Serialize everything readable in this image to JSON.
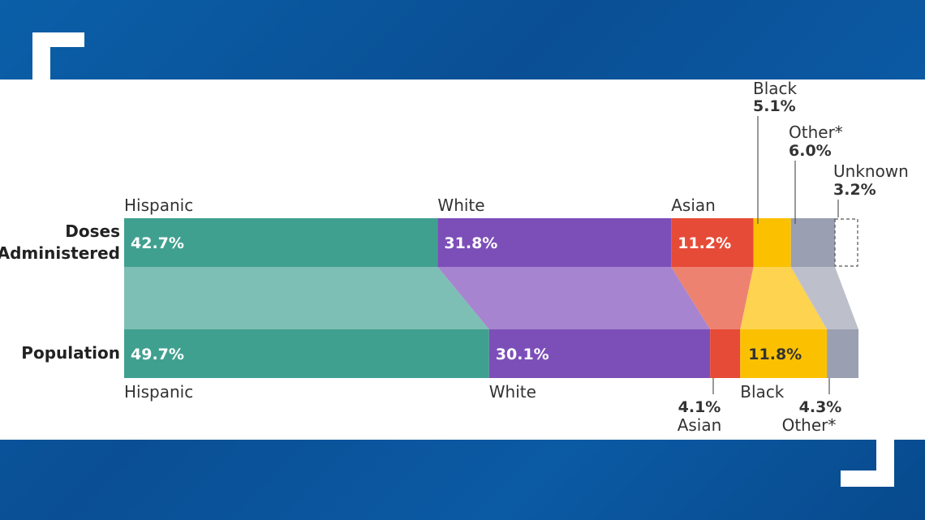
{
  "chart_data": {
    "type": "bar",
    "orientation": "horizontal-stacked-100",
    "rows": [
      "Doses Administered",
      "Population"
    ],
    "series": [
      {
        "name": "Hispanic",
        "values": [
          42.7,
          49.7
        ],
        "color": "#40a090",
        "light": "#7dbfb4"
      },
      {
        "name": "White",
        "values": [
          31.8,
          30.1
        ],
        "color": "#7c4fb8",
        "light": "#a784cf"
      },
      {
        "name": "Asian",
        "values": [
          11.2,
          4.1
        ],
        "color": "#e64b37",
        "light": "#ee8270"
      },
      {
        "name": "Black",
        "values": [
          5.1,
          11.8
        ],
        "color": "#fbc100",
        "light": "#fdd34f"
      },
      {
        "name": "Other*",
        "values": [
          6.0,
          4.3
        ],
        "color": "#9a9fb1",
        "light": "#bdc0cb"
      },
      {
        "name": "Unknown",
        "values": [
          3.2,
          null
        ],
        "color": "none"
      }
    ],
    "row_labels": {
      "doses_line1": "Doses",
      "doses_line2": "Administered",
      "population": "Population"
    },
    "value_labels": {
      "doses": [
        "42.7%",
        "31.8%",
        "11.2%",
        "5.1%",
        "6.0%",
        "3.2%"
      ],
      "population": [
        "49.7%",
        "30.1%",
        "4.1%",
        "11.8%",
        "4.3%"
      ]
    },
    "unknown_style": "dashed-outline"
  }
}
